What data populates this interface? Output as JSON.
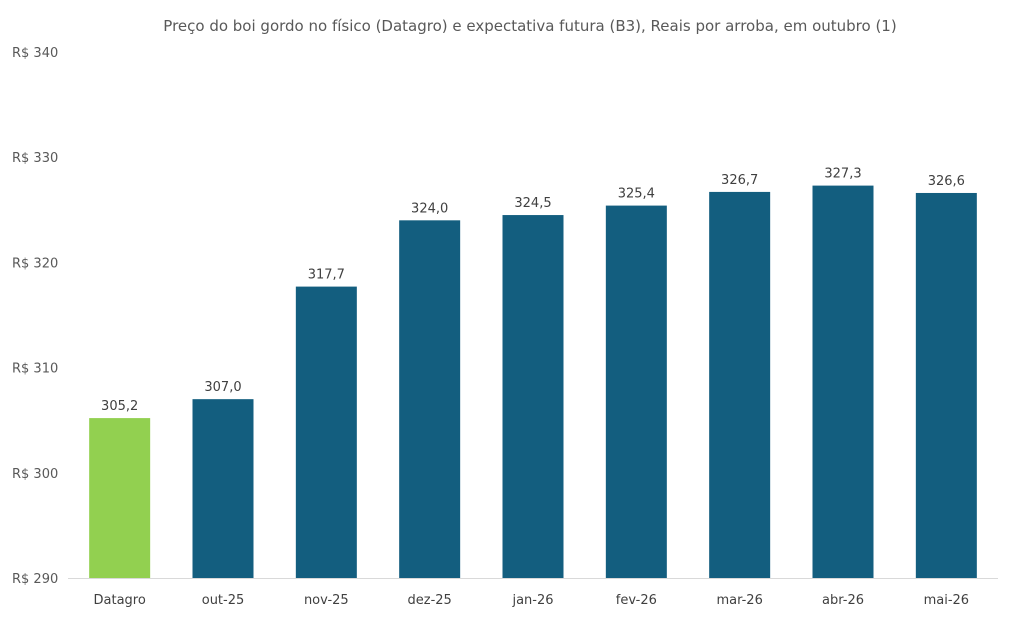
{
  "chart_data": {
    "type": "bar",
    "title": "Preço do boi gordo no físico (Datagro)  e expectativa futura (B3), Reais por arroba, em outubro (1)",
    "xlabel": "",
    "ylabel": "",
    "ylim": [
      290,
      340
    ],
    "yticks": [
      "R$ 290",
      "R$ 300",
      "R$ 310",
      "R$ 320",
      "R$ 330",
      "R$ 340"
    ],
    "yticks_values": [
      290,
      300,
      310,
      320,
      330,
      340
    ],
    "categories": [
      "Datagro",
      "out-25",
      "nov-25",
      "dez-25",
      "jan-26",
      "fev-26",
      "mar-26",
      "abr-26",
      "mai-26"
    ],
    "values": [
      305.2,
      307.0,
      317.7,
      324.0,
      324.5,
      325.4,
      326.7,
      327.3,
      326.6
    ],
    "labels": [
      "305,2",
      "307,0",
      "317,7",
      "324,0",
      "324,5",
      "325,4",
      "326,7",
      "327,3",
      "326,6"
    ],
    "colors": [
      "#92d050",
      "#135e7f",
      "#135e7f",
      "#135e7f",
      "#135e7f",
      "#135e7f",
      "#135e7f",
      "#135e7f",
      "#135e7f"
    ],
    "grid": false,
    "legend": "none"
  }
}
